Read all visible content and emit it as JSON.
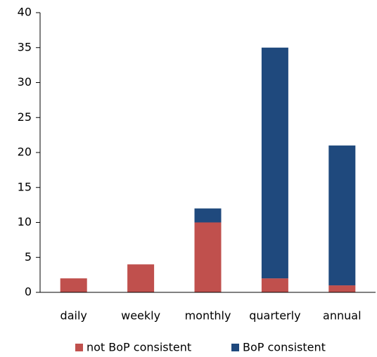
{
  "chart_data": {
    "type": "bar",
    "stacked": true,
    "categories": [
      "daily",
      "weekly",
      "monthly",
      "quarterly",
      "annual"
    ],
    "series": [
      {
        "name": "not BoP consistent",
        "color": "#c0504d",
        "values": [
          2,
          4,
          10,
          2,
          1
        ]
      },
      {
        "name": "BoP consistent",
        "color": "#1f497d",
        "values": [
          0,
          0,
          2,
          33,
          20
        ]
      }
    ],
    "ylim": [
      0,
      40
    ],
    "yticks": [
      0,
      5,
      10,
      15,
      20,
      25,
      30,
      35,
      40
    ],
    "grid": false,
    "legend": "bottom"
  }
}
